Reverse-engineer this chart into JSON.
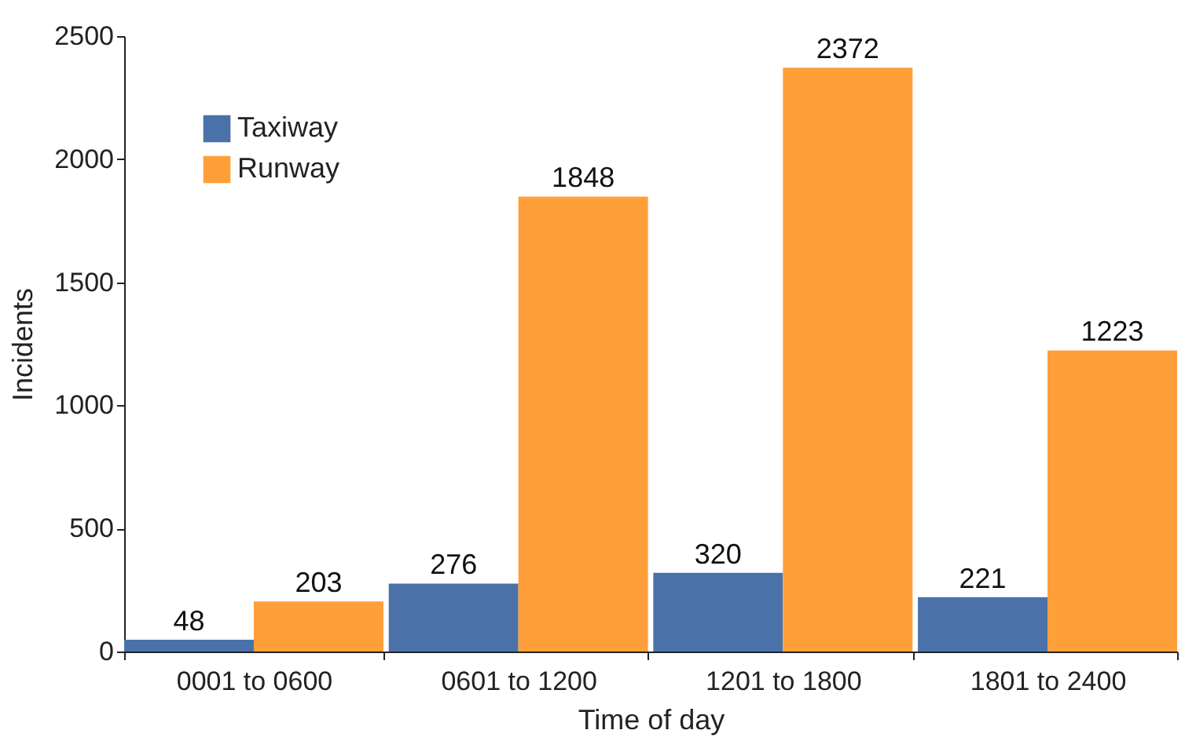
{
  "chart_data": {
    "type": "bar",
    "xlabel": "Time of day",
    "ylabel": "Incidents",
    "categories": [
      "0001 to 0600",
      "0601 to 1200",
      "1201 to 1800",
      "1801 to 2400"
    ],
    "series": [
      {
        "name": "Taxiway",
        "color": "#4a72a8",
        "values": [
          48,
          276,
          320,
          221
        ]
      },
      {
        "name": "Runway",
        "color": "#ff9f3a",
        "values": [
          203,
          1848,
          2372,
          1223
        ]
      }
    ],
    "ylim": [
      0,
      2500
    ],
    "yticks": [
      0,
      500,
      1000,
      1500,
      2000,
      2500
    ],
    "data_labels": true,
    "legend": "top left",
    "grid": false
  }
}
